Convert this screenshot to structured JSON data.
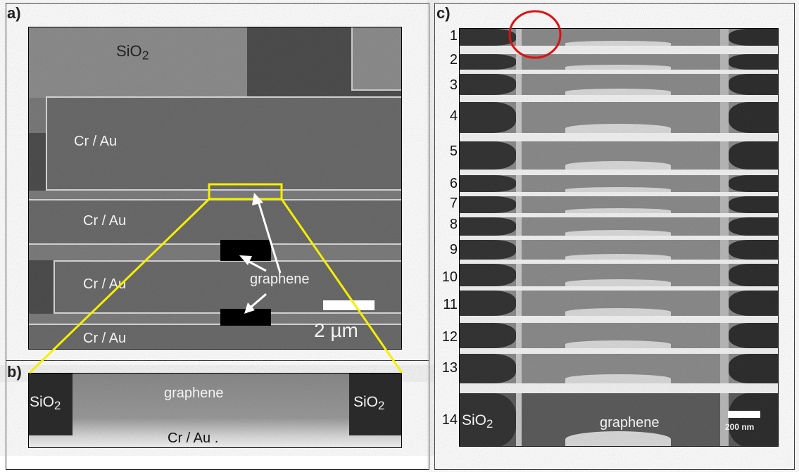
{
  "figure": {
    "panel_a": {
      "label": "a)",
      "sio2_label": "SiO",
      "sio2_sub": "2",
      "electrodes": [
        "Cr / Au",
        "Cr / Au",
        "Cr / Au",
        "Cr / Au"
      ],
      "graphene_label": "graphene",
      "scale_bar_label": "2 µm"
    },
    "panel_b": {
      "label": "b)",
      "left_label": "SiO",
      "left_sub": "2",
      "right_label": "SiO",
      "right_sub": "2",
      "center_label": "graphene",
      "bottom_label": "Cr / Au ."
    },
    "panel_c": {
      "label": "c)",
      "slices": [
        "1",
        "2",
        "3",
        "4",
        "5",
        "6",
        "7",
        "8",
        "9",
        "10",
        "11",
        "12",
        "13",
        "14"
      ],
      "last_sio2_label": "SiO",
      "last_sio2_sub": "2",
      "last_graphene_label": "graphene",
      "scale_bar_label": "200 nm"
    },
    "colors": {
      "highlight_box": "#f5ef00",
      "circle": "#e01010",
      "substrate": "#8a8a8a",
      "metal": "#4a4a4a"
    }
  }
}
